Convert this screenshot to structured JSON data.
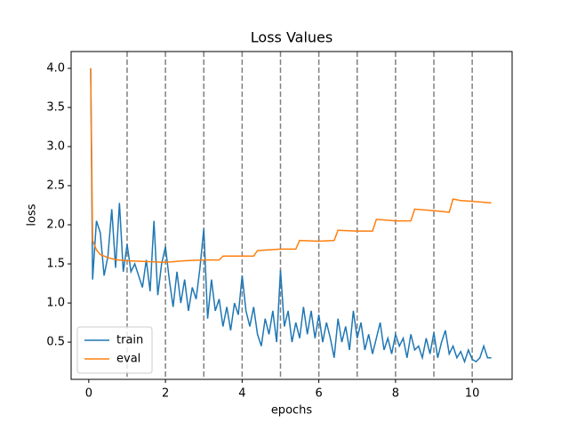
{
  "chart_data": {
    "type": "line",
    "title": "Loss Values",
    "x_label": "epochs",
    "y_label": "loss",
    "xlim": [
      -0.46,
      11.04
    ],
    "ylim": [
      0.024,
      4.215
    ],
    "xticks": [
      0,
      2,
      4,
      6,
      8,
      10
    ],
    "yticks": [
      {
        "value": 0.5,
        "label": "0.5"
      },
      {
        "value": 1.0,
        "label": "1.0"
      },
      {
        "value": 1.5,
        "label": "1.5"
      },
      {
        "value": 2.0,
        "label": "2.0"
      },
      {
        "value": 2.5,
        "label": "2.5"
      },
      {
        "value": 3.0,
        "label": "3.0"
      },
      {
        "value": 3.5,
        "label": "3.5"
      },
      {
        "value": 4.0,
        "label": "4.0"
      }
    ],
    "vlines": [
      1,
      2,
      3,
      4,
      5,
      6,
      7,
      8,
      9,
      10
    ],
    "vline_color": "#808080",
    "legend": "lower left",
    "series": [
      {
        "name": "train",
        "color": "#1f77b4",
        "x": [
          0.05,
          0.1,
          0.2,
          0.3,
          0.4,
          0.5,
          0.6,
          0.7,
          0.8,
          0.9,
          1.0,
          1.1,
          1.2,
          1.3,
          1.4,
          1.5,
          1.6,
          1.7,
          1.8,
          1.9,
          2.0,
          2.1,
          2.2,
          2.3,
          2.4,
          2.5,
          2.6,
          2.7,
          2.8,
          2.9,
          3.0,
          3.1,
          3.2,
          3.3,
          3.4,
          3.5,
          3.6,
          3.7,
          3.8,
          3.9,
          4.0,
          4.1,
          4.2,
          4.3,
          4.4,
          4.5,
          4.6,
          4.7,
          4.8,
          4.9,
          5.0,
          5.1,
          5.2,
          5.3,
          5.4,
          5.5,
          5.6,
          5.7,
          5.8,
          5.9,
          6.0,
          6.1,
          6.2,
          6.3,
          6.4,
          6.5,
          6.6,
          6.7,
          6.8,
          6.9,
          7.0,
          7.1,
          7.2,
          7.3,
          7.4,
          7.5,
          7.6,
          7.7,
          7.8,
          7.9,
          8.0,
          8.1,
          8.2,
          8.3,
          8.4,
          8.5,
          8.6,
          8.7,
          8.8,
          8.9,
          9.0,
          9.1,
          9.2,
          9.3,
          9.4,
          9.5,
          9.6,
          9.7,
          9.8,
          9.9,
          10.0,
          10.1,
          10.2,
          10.3,
          10.4,
          10.5
        ],
        "values": [
          4.0,
          1.3,
          2.05,
          1.9,
          1.35,
          1.6,
          2.2,
          1.45,
          2.28,
          1.4,
          1.75,
          1.4,
          1.5,
          1.35,
          1.2,
          1.55,
          1.15,
          2.05,
          1.1,
          1.5,
          1.72,
          1.3,
          0.95,
          1.4,
          1.0,
          1.3,
          0.9,
          1.2,
          1.05,
          1.45,
          1.95,
          0.8,
          1.3,
          0.9,
          1.05,
          0.7,
          0.95,
          0.65,
          1.0,
          0.85,
          1.35,
          0.9,
          0.7,
          0.95,
          0.6,
          0.45,
          0.8,
          0.6,
          0.9,
          0.5,
          1.42,
          0.7,
          0.9,
          0.5,
          0.75,
          0.55,
          0.95,
          0.6,
          0.9,
          0.55,
          0.85,
          0.5,
          0.75,
          0.55,
          0.3,
          0.8,
          0.5,
          0.7,
          0.4,
          0.9,
          0.55,
          0.75,
          0.4,
          0.6,
          0.35,
          0.55,
          0.75,
          0.4,
          0.55,
          0.35,
          0.6,
          0.45,
          0.55,
          0.3,
          0.6,
          0.4,
          0.45,
          0.3,
          0.55,
          0.35,
          0.62,
          0.3,
          0.5,
          0.65,
          0.35,
          0.45,
          0.3,
          0.38,
          0.25,
          0.4,
          0.28,
          0.25,
          0.3,
          0.45,
          0.3,
          0.3
        ]
      },
      {
        "name": "eval",
        "color": "#ff7f0e",
        "x": [
          0.05,
          0.1,
          0.2,
          0.3,
          0.5,
          0.75,
          1,
          1.5,
          2,
          2.5,
          3,
          3.4,
          3.5,
          4,
          4.3,
          4.4,
          5,
          5.4,
          5.5,
          6,
          6.4,
          6.5,
          7,
          7.4,
          7.5,
          8,
          8.4,
          8.5,
          9,
          9.4,
          9.5,
          9.7,
          10,
          10.5
        ],
        "values": [
          4.0,
          1.8,
          1.68,
          1.62,
          1.58,
          1.55,
          1.54,
          1.53,
          1.52,
          1.54,
          1.55,
          1.55,
          1.6,
          1.6,
          1.6,
          1.67,
          1.69,
          1.69,
          1.8,
          1.79,
          1.8,
          1.93,
          1.92,
          1.92,
          2.07,
          2.05,
          2.05,
          2.2,
          2.18,
          2.16,
          2.33,
          2.31,
          2.3,
          2.28
        ]
      }
    ]
  }
}
